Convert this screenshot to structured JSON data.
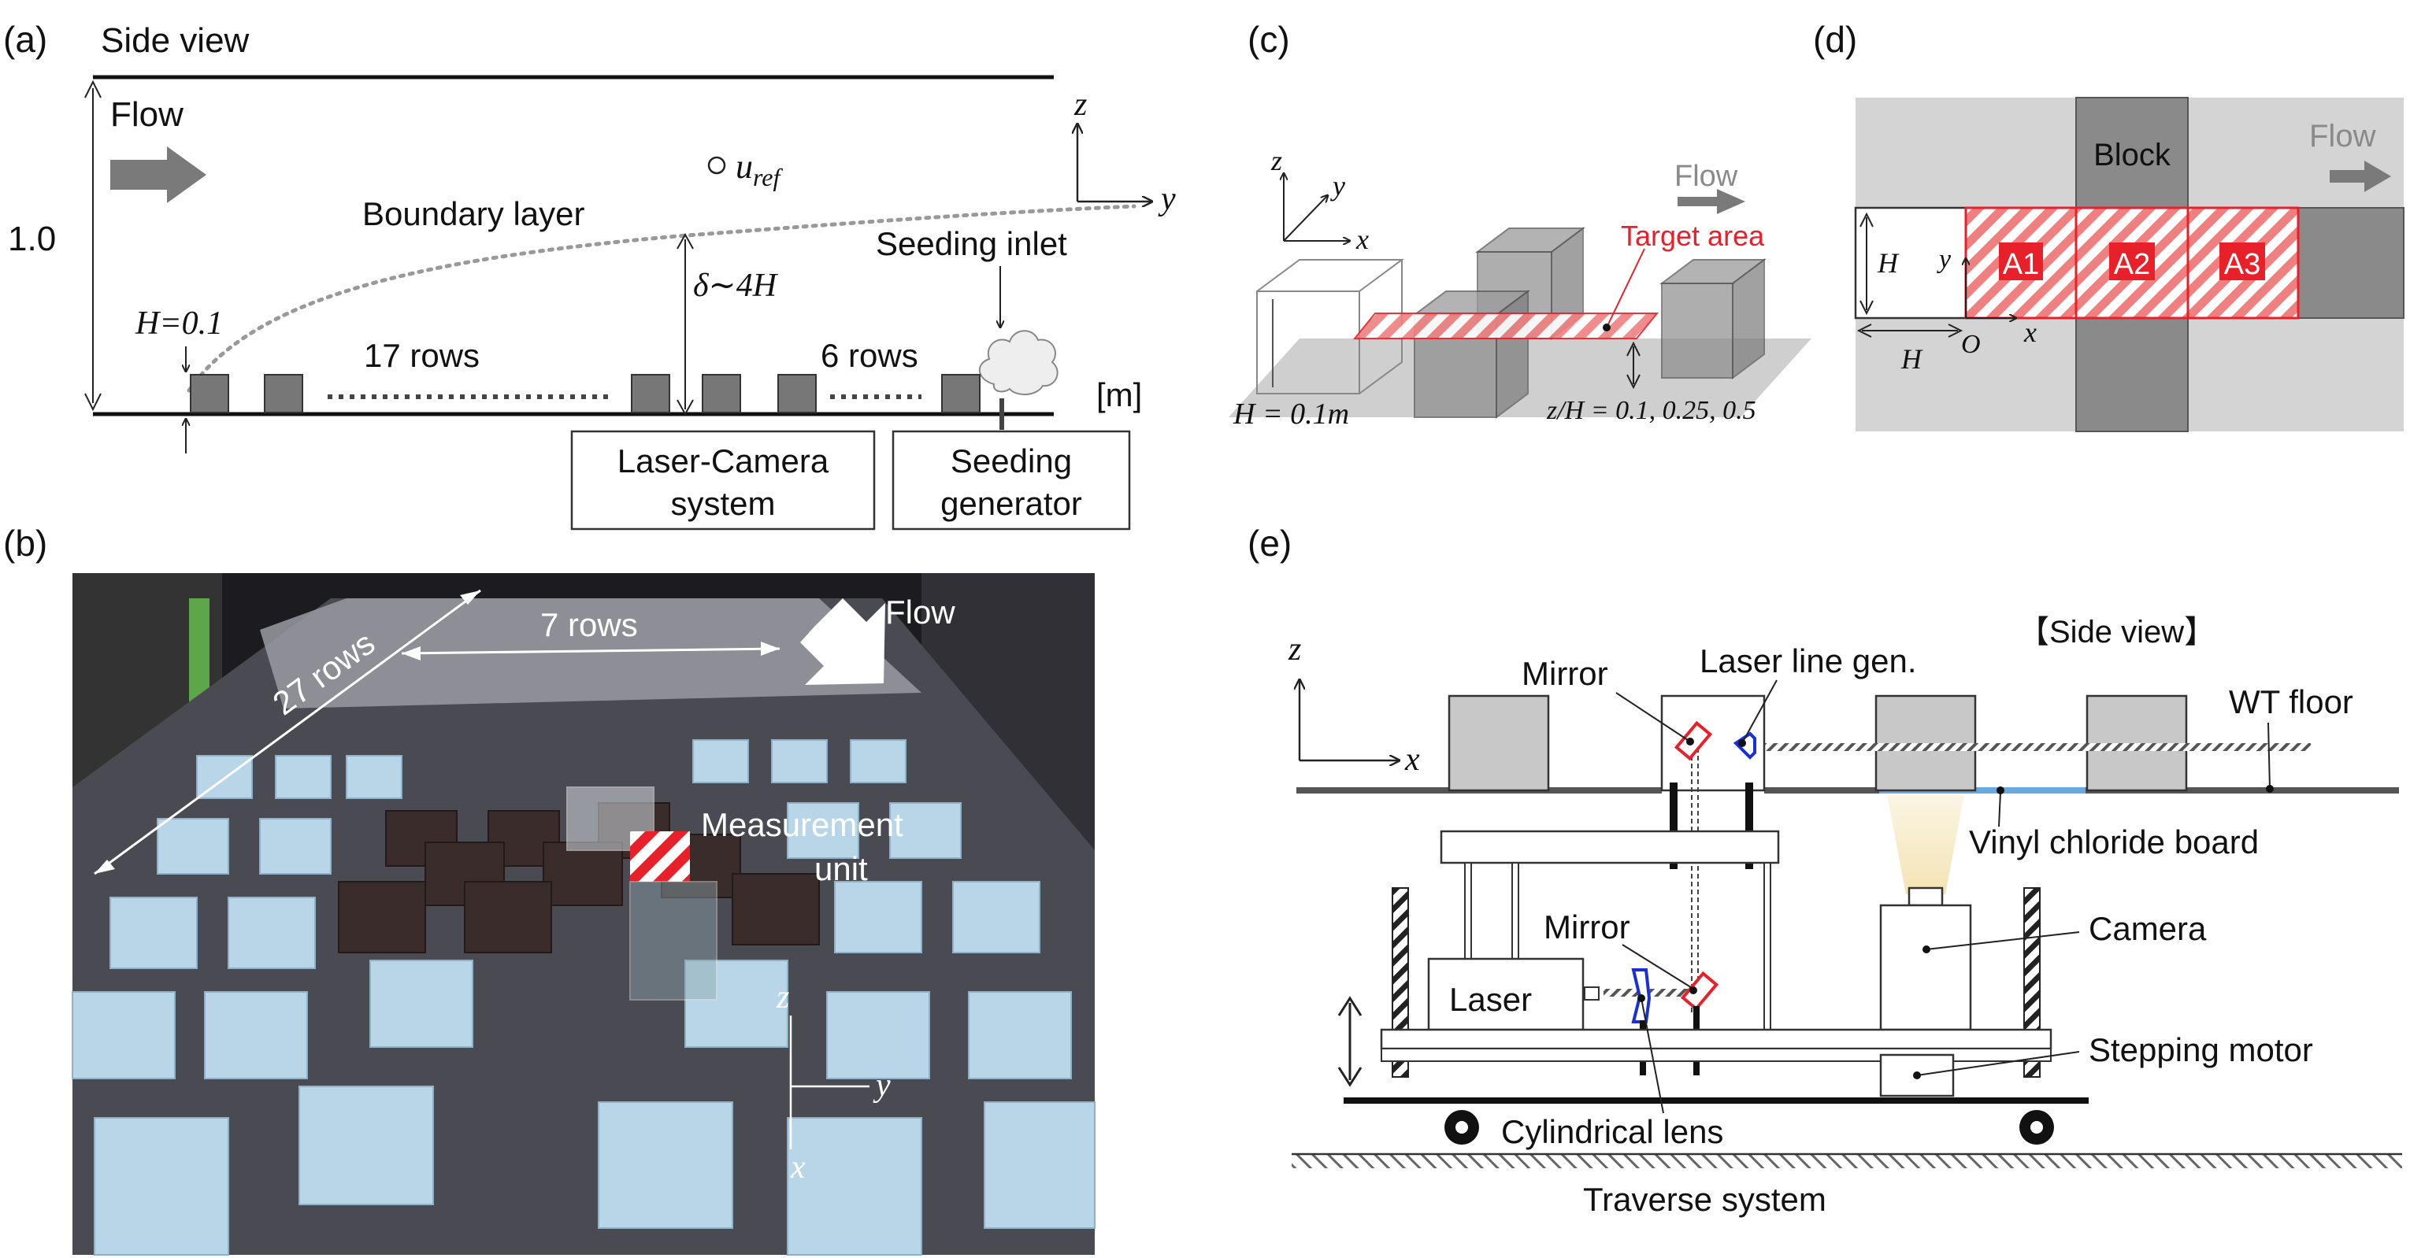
{
  "panels": {
    "a": {
      "label": "(a)",
      "title": "Side view",
      "flow": "Flow",
      "height_label": "1.0",
      "uref": "u",
      "uref_sub": "ref",
      "boundary_layer": "Boundary layer",
      "z_axis": "z",
      "y_axis": "y",
      "seeding_inlet": "Seeding inlet",
      "delta": "δ∼4H",
      "H_label": "H=0.1",
      "rows_17": "17 rows",
      "rows_6": "6 rows",
      "unit": "[m]",
      "laser_camera_1": "Laser-Camera",
      "laser_camera_2": "system",
      "seeding_gen_1": "Seeding",
      "seeding_gen_2": "generator"
    },
    "b": {
      "label": "(b)",
      "rows_27": "27 rows",
      "rows_7": "7 rows",
      "flow": "Flow",
      "measurement_1": "Measurement",
      "measurement_2": "unit",
      "z": "z",
      "y": "y",
      "x": "x"
    },
    "c": {
      "label": "(c)",
      "z": "z",
      "y": "y",
      "x": "x",
      "flow": "Flow",
      "target_area": "Target area",
      "H_label": "H = 0.1m",
      "zH_label": "z/H = 0.1, 0.25, 0.5"
    },
    "d": {
      "label": "(d)",
      "block": "Block",
      "flow": "Flow",
      "H_v": "H",
      "y": "y",
      "a1": "A1",
      "a2": "A2",
      "a3": "A3",
      "O": "O",
      "x": "x",
      "H_h": "H"
    },
    "e": {
      "label": "(e)",
      "side_view": "【Side view】",
      "z": "z",
      "x": "x",
      "mirror_top": "Mirror",
      "laser_line": "Laser line gen.",
      "wt_floor": "WT floor",
      "vinyl": "Vinyl chloride board",
      "mirror_bottom": "Mirror",
      "camera": "Camera",
      "laser": "Laser",
      "stepping_motor": "Stepping motor",
      "cyl_lens": "Cylindrical lens",
      "traverse": "Traverse system"
    }
  },
  "colors": {
    "red": "#e8202a",
    "blue": "#1a2fd8",
    "arrow_grey": "#7a7a7a",
    "floor_blue": "#6aa8e0"
  }
}
